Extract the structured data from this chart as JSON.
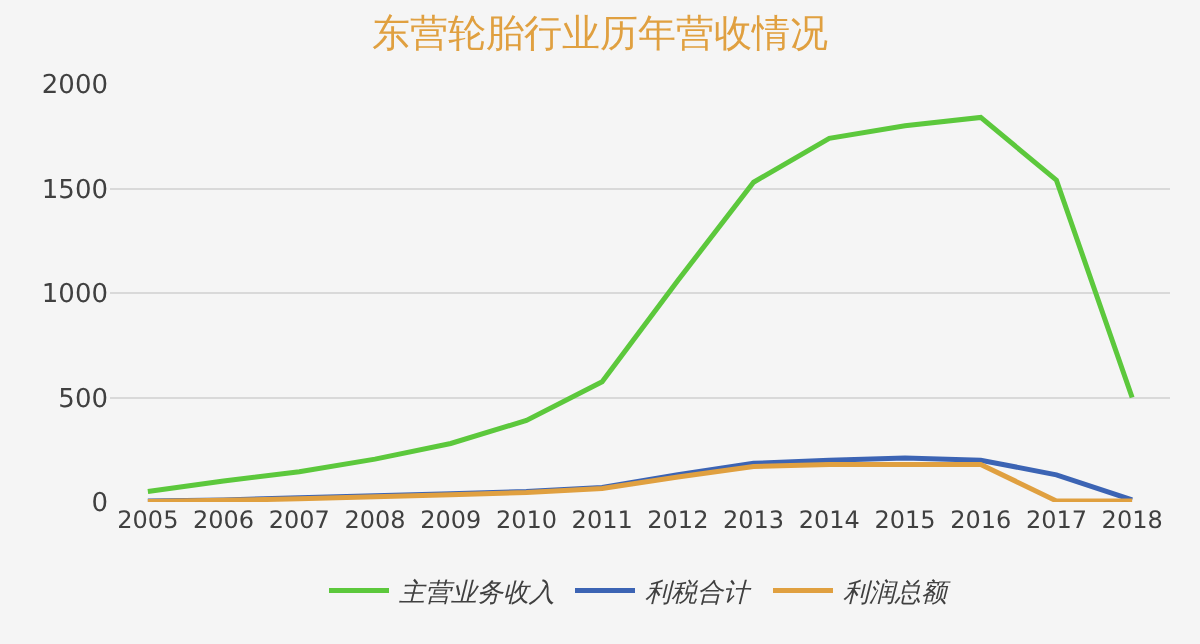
{
  "chart_data": {
    "type": "line",
    "title": "东营轮胎行业历年营收情况",
    "categories": [
      "2005",
      "2006",
      "2007",
      "2008",
      "2009",
      "2010",
      "2011",
      "2012",
      "2013",
      "2014",
      "2015",
      "2016",
      "2017",
      "2018"
    ],
    "series": [
      {
        "name": "主营业务收入",
        "color": "#5cc83c",
        "values": [
          50,
          100,
          145,
          205,
          280,
          390,
          575,
          1060,
          1530,
          1740,
          1800,
          1840,
          1540,
          500
        ]
      },
      {
        "name": "利税合计",
        "color": "#3c64b4",
        "values": [
          5,
          10,
          20,
          30,
          40,
          50,
          70,
          130,
          185,
          200,
          210,
          200,
          130,
          10
        ]
      },
      {
        "name": "利润总额",
        "color": "#e0a040",
        "values": [
          3,
          8,
          15,
          25,
          35,
          45,
          65,
          120,
          170,
          180,
          180,
          180,
          5,
          5
        ]
      }
    ],
    "ylim": [
      0,
      2000
    ],
    "yticks": [
      0,
      500,
      1000,
      1500,
      2000
    ],
    "grid": "y",
    "legend": "bottom",
    "marker": "none",
    "line_style": "solid"
  }
}
